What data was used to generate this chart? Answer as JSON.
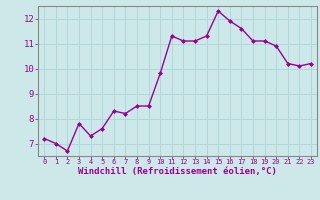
{
  "x": [
    0,
    1,
    2,
    3,
    4,
    5,
    6,
    7,
    8,
    9,
    10,
    11,
    12,
    13,
    14,
    15,
    16,
    17,
    18,
    19,
    20,
    21,
    22,
    23
  ],
  "y": [
    7.2,
    7.0,
    6.7,
    7.8,
    7.3,
    7.6,
    8.3,
    8.2,
    8.5,
    8.5,
    9.8,
    11.3,
    11.1,
    11.1,
    11.3,
    12.3,
    11.9,
    11.6,
    11.1,
    11.1,
    10.9,
    10.2,
    10.1,
    10.2
  ],
  "line_color": "#990099",
  "marker": "D",
  "marker_size": 2,
  "bg_color": "#cce8e8",
  "grid_color": "#b0d8d8",
  "xlabel": "Windchill (Refroidissement éolien,°C)",
  "xlabel_color": "#990099",
  "tick_color": "#990099",
  "ylim": [
    6.5,
    12.5
  ],
  "xlim": [
    -0.5,
    23.5
  ],
  "yticks": [
    7,
    8,
    9,
    10,
    11,
    12
  ],
  "xticks": [
    0,
    1,
    2,
    3,
    4,
    5,
    6,
    7,
    8,
    9,
    10,
    11,
    12,
    13,
    14,
    15,
    16,
    17,
    18,
    19,
    20,
    21,
    22,
    23
  ],
  "spine_color": "#888888",
  "line_width": 1.0,
  "xlabel_fontsize": 6.5,
  "xtick_fontsize": 5.0,
  "ytick_fontsize": 6.5
}
